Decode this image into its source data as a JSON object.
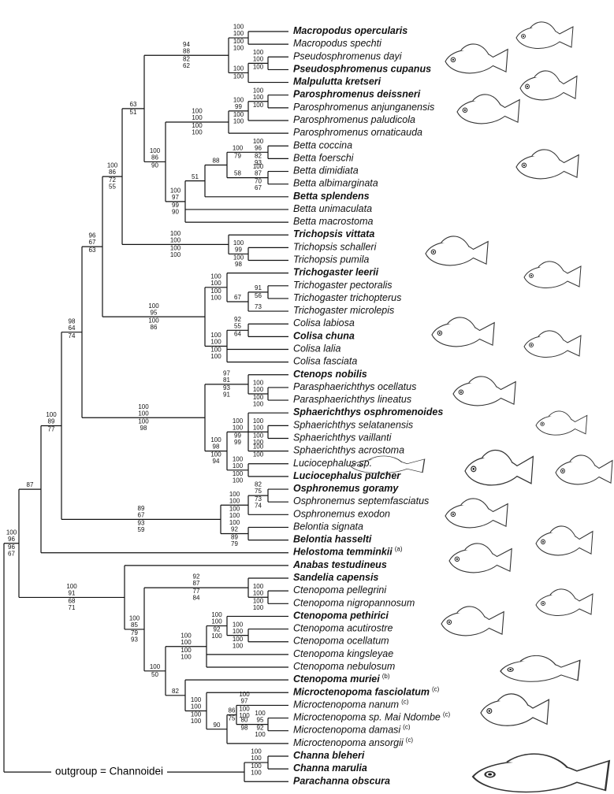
{
  "outgroup_label": "outgroup = Channoidei",
  "taxa": [
    {
      "name": "Macropodus opercularis",
      "bold": true
    },
    {
      "name": "Macropodus spechti"
    },
    {
      "name": "Pseudosphromenus dayi"
    },
    {
      "name": "Pseudosphromenus cupanus",
      "bold": true
    },
    {
      "name": "Malpulutta kretseri",
      "bold": true
    },
    {
      "name": "Parosphromenus deissneri",
      "bold": true
    },
    {
      "name": "Parosphromenus anjunganensis"
    },
    {
      "name": "Parosphromenus paludicola"
    },
    {
      "name": "Parosphromenus ornaticauda"
    },
    {
      "name": "Betta coccina"
    },
    {
      "name": "Betta foerschi"
    },
    {
      "name": "Betta dimidiata"
    },
    {
      "name": "Betta albimarginata"
    },
    {
      "name": "Betta splendens",
      "bold": true
    },
    {
      "name": "Betta unimaculata"
    },
    {
      "name": "Betta macrostoma"
    },
    {
      "name": "Trichopsis vittata",
      "bold": true
    },
    {
      "name": "Trichopsis schalleri"
    },
    {
      "name": "Trichopsis pumila"
    },
    {
      "name": "Trichogaster leerii",
      "bold": true
    },
    {
      "name": "Trichogaster pectoralis"
    },
    {
      "name": "Trichogaster trichopterus"
    },
    {
      "name": "Trichogaster microlepis"
    },
    {
      "name": "Colisa labiosa"
    },
    {
      "name": "Colisa chuna",
      "bold": true
    },
    {
      "name": "Colisa lalia"
    },
    {
      "name": "Colisa fasciata"
    },
    {
      "name": "Ctenops nobilis",
      "bold": true
    },
    {
      "name": "Parasphaerichthys ocellatus"
    },
    {
      "name": "Parasphaerichthys lineatus"
    },
    {
      "name": "Sphaerichthys osphromenoides",
      "bold": true
    },
    {
      "name": "Sphaerichthys selatanensis"
    },
    {
      "name": "Sphaerichthys vaillanti"
    },
    {
      "name": "Sphaerichthys acrostoma"
    },
    {
      "name": "Luciocephalus sp."
    },
    {
      "name": "Luciocephalus pulcher",
      "bold": true
    },
    {
      "name": "Osphronemus goramy",
      "bold": true
    },
    {
      "name": "Osphronemus septemfasciatus"
    },
    {
      "name": "Osphronemus exodon"
    },
    {
      "name": "Belontia signata"
    },
    {
      "name": "Belontia hasselti",
      "bold": true
    },
    {
      "name": "Helostoma temminkii",
      "bold": true,
      "note": "(a)"
    },
    {
      "name": "Anabas testudineus",
      "bold": true
    },
    {
      "name": "Sandelia capensis",
      "bold": true
    },
    {
      "name": "Ctenopoma pellegrini"
    },
    {
      "name": "Ctenopoma nigropannosum"
    },
    {
      "name": "Ctenopoma pethirici",
      "bold": true
    },
    {
      "name": "Ctenopoma acutirostre"
    },
    {
      "name": "Ctenopoma ocellatum"
    },
    {
      "name": "Ctenopoma kingsleyae"
    },
    {
      "name": "Ctenopoma nebulosum"
    },
    {
      "name": "Ctenopoma muriei",
      "bold": true,
      "note": "(b)"
    },
    {
      "name": "Microctenopoma fasciolatum",
      "bold": true,
      "note": "(c)"
    },
    {
      "name": "Microctenopoma nanum",
      "note": "(c)"
    },
    {
      "name": "Microctenopoma sp. Mai Ndombe",
      "note": "(c)"
    },
    {
      "name": "Microctenopoma damasi",
      "note": "(c)"
    },
    {
      "name": "Microctenopoma ansorgii",
      "note": "(c)"
    },
    {
      "name": "Channa bleheri",
      "bold": true
    },
    {
      "name": "Channa marulia",
      "bold": true
    },
    {
      "name": "Parachanna obscura",
      "bold": true
    }
  ],
  "nodes": [
    {
      "support": [
        100,
        96,
        96,
        67
      ]
    },
    {
      "support": [
        87
      ]
    },
    {
      "support": [
        100,
        89,
        77
      ]
    },
    {
      "support": [
        98,
        64,
        74
      ]
    },
    {
      "support": [
        96,
        67,
        63
      ]
    },
    {
      "support": [
        100,
        86,
        72,
        55
      ]
    },
    {
      "support": [
        63,
        51
      ]
    },
    {
      "support": [
        94,
        88,
        82,
        62
      ]
    },
    {
      "support": [
        100,
        100,
        100,
        100
      ]
    },
    {
      "support": [
        100,
        100
      ]
    },
    {
      "support": [
        100,
        100,
        100
      ]
    },
    {
      "support": [
        100,
        86,
        90
      ]
    },
    {
      "support": [
        100,
        100,
        100,
        100
      ]
    },
    {
      "support": [
        100,
        99,
        100,
        100
      ]
    },
    {
      "support": [
        100,
        100,
        100
      ]
    },
    {
      "support": [
        100,
        97,
        99,
        90
      ]
    },
    {
      "support": [
        51
      ]
    },
    {
      "support": [
        88
      ]
    },
    {
      "support": [
        100,
        79
      ]
    },
    {
      "support": [
        100,
        96,
        82,
        93
      ]
    },
    {
      "support": [
        58
      ]
    },
    {
      "support": [
        100,
        87,
        70,
        67
      ]
    },
    {
      "support": [
        100,
        100,
        100,
        100
      ]
    },
    {
      "support": [
        100,
        99,
        100,
        98
      ]
    },
    {
      "support": [
        100,
        95,
        100,
        86
      ]
    },
    {
      "support": [
        100,
        100,
        100,
        100
      ]
    },
    {
      "support": [
        67
      ]
    },
    {
      "support": [
        91,
        56
      ]
    },
    {
      "support": [
        73
      ]
    },
    {
      "support": [
        100,
        100,
        100,
        100
      ]
    },
    {
      "support": [
        92,
        55,
        64
      ]
    },
    {
      "support": [
        100,
        100,
        100,
        98
      ]
    },
    {
      "support": [
        97,
        81,
        93,
        91
      ]
    },
    {
      "support": [
        100,
        100,
        100,
        100
      ]
    },
    {
      "support": [
        100,
        98,
        100,
        94
      ]
    },
    {
      "support": [
        100,
        100,
        99,
        99
      ]
    },
    {
      "support": [
        100,
        100,
        100,
        100
      ]
    },
    {
      "support": [
        100,
        100
      ]
    },
    {
      "support": [
        100,
        100,
        100,
        100
      ]
    },
    {
      "support": [
        89,
        67,
        93,
        59
      ]
    },
    {
      "support": [
        100,
        100,
        100,
        100
      ]
    },
    {
      "support": [
        82,
        75,
        73,
        74
      ]
    },
    {
      "support": [
        100,
        92,
        89,
        79
      ]
    },
    {
      "support": [
        100,
        91,
        68,
        71
      ]
    },
    {
      "support": [
        100,
        85,
        79,
        93
      ]
    },
    {
      "support": [
        92,
        87,
        77,
        84
      ]
    },
    {
      "support": [
        100,
        100,
        100,
        100
      ]
    },
    {
      "support": [
        100,
        50
      ]
    },
    {
      "support": [
        100,
        100,
        100,
        100
      ]
    },
    {
      "support": [
        100,
        100,
        92,
        100
      ]
    },
    {
      "support": [
        100,
        100,
        100,
        100
      ]
    },
    {
      "support": [
        82
      ]
    },
    {
      "support": [
        100,
        100,
        100,
        100
      ]
    },
    {
      "support": [
        90
      ]
    },
    {
      "support": [
        86,
        75
      ]
    },
    {
      "support": [
        100,
        97,
        100,
        100
      ]
    },
    {
      "support": [
        80,
        98
      ]
    },
    {
      "support": [
        100,
        95,
        92,
        100
      ]
    },
    {
      "support": [
        100,
        100,
        100,
        100
      ]
    }
  ]
}
